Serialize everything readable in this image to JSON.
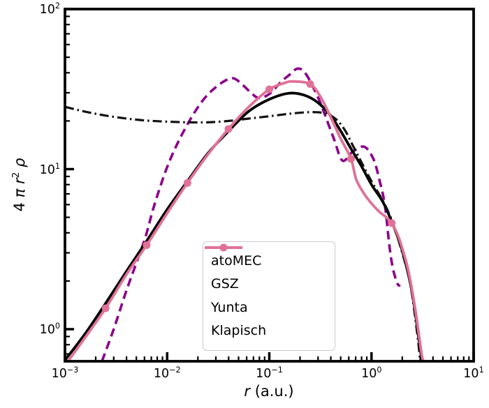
{
  "figure": {
    "background": "#ffffff"
  },
  "chart_data": {
    "type": "line",
    "title": "",
    "xscale": "log",
    "yscale": "log",
    "xlim": [
      0.001,
      10
    ],
    "ylim": [
      0.63,
      100
    ],
    "grid": false,
    "legend_position": "inside lower-center",
    "xlabel_parts": [
      {
        "t": "r",
        "i": true
      },
      {
        "t": " (a.u.)",
        "i": false
      }
    ],
    "ylabel_parts": [
      {
        "t": "4 ",
        "i": false
      },
      {
        "t": "π",
        "i": true
      },
      {
        "t": " ",
        "i": false
      },
      {
        "t": "r",
        "i": true
      },
      {
        "t": "2",
        "sup": true
      },
      {
        "t": " ",
        "i": false
      },
      {
        "t": "ρ",
        "i": true
      }
    ],
    "x_ticks": [
      {
        "log": -3,
        "base": "10",
        "exp": "−3"
      },
      {
        "log": -2,
        "base": "10",
        "exp": "−2"
      },
      {
        "log": -1,
        "base": "10",
        "exp": "−1"
      },
      {
        "log": 0,
        "base": "10",
        "exp": "0"
      },
      {
        "log": 1,
        "base": "10",
        "exp": "1"
      }
    ],
    "y_ticks": [
      {
        "log": 0,
        "base": "10",
        "exp": "0"
      },
      {
        "log": 1,
        "base": "10",
        "exp": "1"
      },
      {
        "log": 2,
        "base": "10",
        "exp": "2"
      }
    ],
    "series": [
      {
        "label": "atoMEC",
        "color": "#8B008B",
        "line": "dashed",
        "points": [
          [
            0.0023,
            0.63
          ],
          [
            0.003,
            1.0
          ],
          [
            0.004,
            1.75
          ],
          [
            0.006,
            3.6
          ],
          [
            0.0074,
            5.8
          ],
          [
            0.01,
            10.3
          ],
          [
            0.014,
            16.5
          ],
          [
            0.021,
            25.5
          ],
          [
            0.03,
            32.5
          ],
          [
            0.043,
            37.0
          ],
          [
            0.055,
            33.5
          ],
          [
            0.068,
            29.5
          ],
          [
            0.08,
            27.8
          ],
          [
            0.1,
            29.5
          ],
          [
            0.13,
            35.0
          ],
          [
            0.155,
            38.5
          ],
          [
            0.19,
            42.5
          ],
          [
            0.23,
            39.0
          ],
          [
            0.3,
            28.0
          ],
          [
            0.34,
            23.0
          ],
          [
            0.43,
            15.4
          ],
          [
            0.52,
            11.3
          ],
          [
            0.65,
            12.8
          ],
          [
            0.85,
            13.8
          ],
          [
            1.05,
            11.5
          ],
          [
            1.2,
            8.5
          ],
          [
            1.35,
            6.0
          ],
          [
            1.5,
            3.3
          ],
          [
            1.62,
            2.4
          ],
          [
            1.78,
            1.95
          ],
          [
            1.9,
            1.85
          ]
        ]
      },
      {
        "label": "GSZ",
        "color": "#000000",
        "line": "solid",
        "points": [
          [
            0.001,
            0.64
          ],
          [
            0.0016,
            0.95
          ],
          [
            0.0025,
            1.45
          ],
          [
            0.004,
            2.3
          ],
          [
            0.0063,
            3.55
          ],
          [
            0.01,
            5.6
          ],
          [
            0.016,
            8.5
          ],
          [
            0.025,
            12.5
          ],
          [
            0.04,
            17.3
          ],
          [
            0.063,
            23.0
          ],
          [
            0.1,
            27.3
          ],
          [
            0.155,
            29.8
          ],
          [
            0.22,
            29.0
          ],
          [
            0.3,
            26.0
          ],
          [
            0.4,
            21.5
          ],
          [
            0.5,
            17.3
          ],
          [
            0.64,
            13.2
          ],
          [
            0.8,
            10.4
          ],
          [
            1.0,
            8.0
          ],
          [
            1.3,
            6.2
          ],
          [
            1.6,
            4.6
          ],
          [
            2.0,
            3.1
          ],
          [
            2.5,
            1.7
          ],
          [
            3.0,
            0.75
          ],
          [
            3.15,
            0.63
          ]
        ]
      },
      {
        "label": "Yunta",
        "color": "#111111",
        "line": "dashdot",
        "points": [
          [
            0.001,
            24.5
          ],
          [
            0.0016,
            22.8
          ],
          [
            0.0025,
            21.6
          ],
          [
            0.004,
            20.7
          ],
          [
            0.0063,
            20.1
          ],
          [
            0.01,
            19.8
          ],
          [
            0.016,
            19.6
          ],
          [
            0.025,
            19.6
          ],
          [
            0.04,
            20.0
          ],
          [
            0.063,
            20.7
          ],
          [
            0.1,
            21.4
          ],
          [
            0.16,
            22.2
          ],
          [
            0.25,
            22.7
          ],
          [
            0.35,
            22.3
          ],
          [
            0.45,
            20.5
          ],
          [
            0.55,
            17.5
          ],
          [
            0.64,
            14.5
          ],
          [
            0.8,
            11.0
          ],
          [
            1.0,
            8.4
          ],
          [
            1.3,
            6.3
          ],
          [
            1.6,
            4.7
          ],
          [
            2.0,
            3.0
          ],
          [
            2.4,
            1.9
          ],
          [
            2.8,
            0.95
          ],
          [
            3.0,
            0.63
          ]
        ]
      },
      {
        "label": "Klapisch",
        "color": "#DF7295",
        "line": "solid",
        "marker": "circle",
        "points": [
          [
            0.00107,
            0.63
          ],
          [
            0.0016,
            0.9
          ],
          [
            0.0025,
            1.35
          ],
          [
            0.004,
            2.2
          ],
          [
            0.0063,
            3.35
          ],
          [
            0.01,
            5.3
          ],
          [
            0.0158,
            8.2
          ],
          [
            0.025,
            12.3
          ],
          [
            0.0398,
            17.8
          ],
          [
            0.063,
            24.5
          ],
          [
            0.1,
            31.5
          ],
          [
            0.14,
            34.5
          ],
          [
            0.17,
            35.3
          ],
          [
            0.251,
            34.0
          ],
          [
            0.32,
            28.0
          ],
          [
            0.4,
            21.0
          ],
          [
            0.5,
            15.5
          ],
          [
            0.631,
            11.6
          ],
          [
            0.71,
            8.6
          ],
          [
            0.85,
            7.0
          ],
          [
            1.0,
            6.1
          ],
          [
            1.2,
            5.4
          ],
          [
            1.4,
            5.0
          ],
          [
            1.58,
            4.6
          ],
          [
            1.8,
            3.9
          ],
          [
            2.0,
            3.2
          ],
          [
            2.3,
            2.3
          ],
          [
            2.7,
            1.3
          ],
          [
            3.1,
            0.7
          ],
          [
            3.25,
            0.63
          ]
        ],
        "marker_points": [
          [
            0.0025,
            1.35
          ],
          [
            0.0063,
            3.35
          ],
          [
            0.0158,
            8.2
          ],
          [
            0.0398,
            17.8
          ],
          [
            0.1,
            31.5
          ],
          [
            0.251,
            34.0
          ],
          [
            0.631,
            11.6
          ],
          [
            1.58,
            4.6
          ]
        ]
      }
    ]
  }
}
